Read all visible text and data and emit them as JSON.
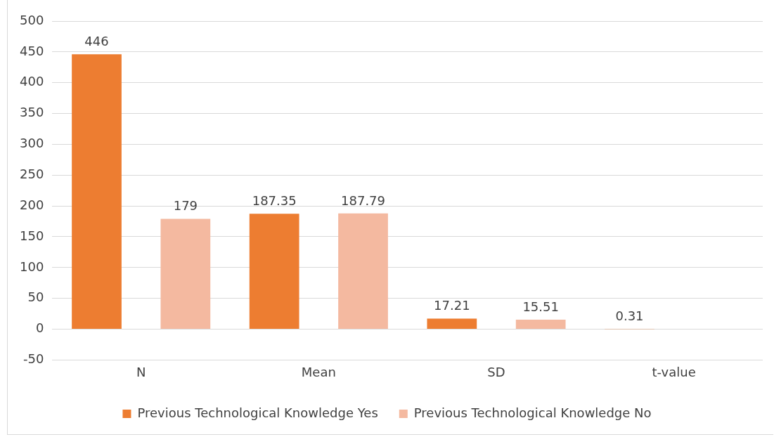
{
  "chart_data": {
    "type": "bar",
    "categories": [
      "N",
      "Mean",
      "SD",
      "t-value"
    ],
    "series": [
      {
        "name": "Previous Technological Knowledge Yes",
        "color": "#ed7d31",
        "values": [
          446,
          187.35,
          17.21,
          0.31
        ]
      },
      {
        "name": "Previous Technological Knowledge No",
        "color": "#f4b9a0",
        "values": [
          179,
          187.79,
          15.51,
          null
        ]
      }
    ],
    "ylim": [
      -50,
      500
    ],
    "yticks": [
      -50,
      0,
      50,
      100,
      150,
      200,
      250,
      300,
      350,
      400,
      450,
      500
    ],
    "grid": "y",
    "legend": "bottom",
    "data_labels": true
  }
}
